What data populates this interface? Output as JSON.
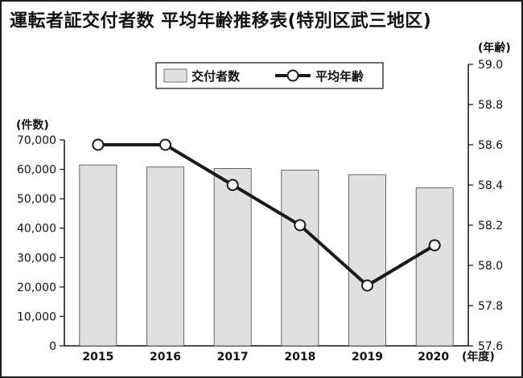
{
  "chart_data": {
    "type": "bar",
    "title": "運転者証交付者数 平均年齢推移表(特別区武三地区)",
    "categories": [
      "2015",
      "2016",
      "2017",
      "2018",
      "2019",
      "2020"
    ],
    "x_unit": "(年度)",
    "legend": {
      "placement": "top-center"
    },
    "series": [
      {
        "name": "交付者数",
        "type": "bar",
        "axis": "left",
        "color": "#e0e0e0",
        "values": [
          61500,
          60800,
          60300,
          59700,
          58200,
          53700
        ]
      },
      {
        "name": "平均年齢",
        "type": "line",
        "axis": "right",
        "color": "#1a1a1a",
        "values": [
          58.6,
          58.6,
          58.4,
          58.2,
          57.9,
          58.1
        ]
      }
    ],
    "y_left": {
      "unit": "(件数)",
      "ylim": [
        0,
        70000
      ],
      "ticks": [
        "0",
        "10,000",
        "20,000",
        "30,000",
        "40,000",
        "50,000",
        "60,000",
        "70,000"
      ]
    },
    "y_right": {
      "unit": "(年齢)",
      "ylim": [
        57.6,
        59.0
      ],
      "ticks": [
        "57.6",
        "57.8",
        "58.0",
        "58.2",
        "58.4",
        "58.6",
        "58.8",
        "59.0"
      ]
    },
    "grid": false
  }
}
